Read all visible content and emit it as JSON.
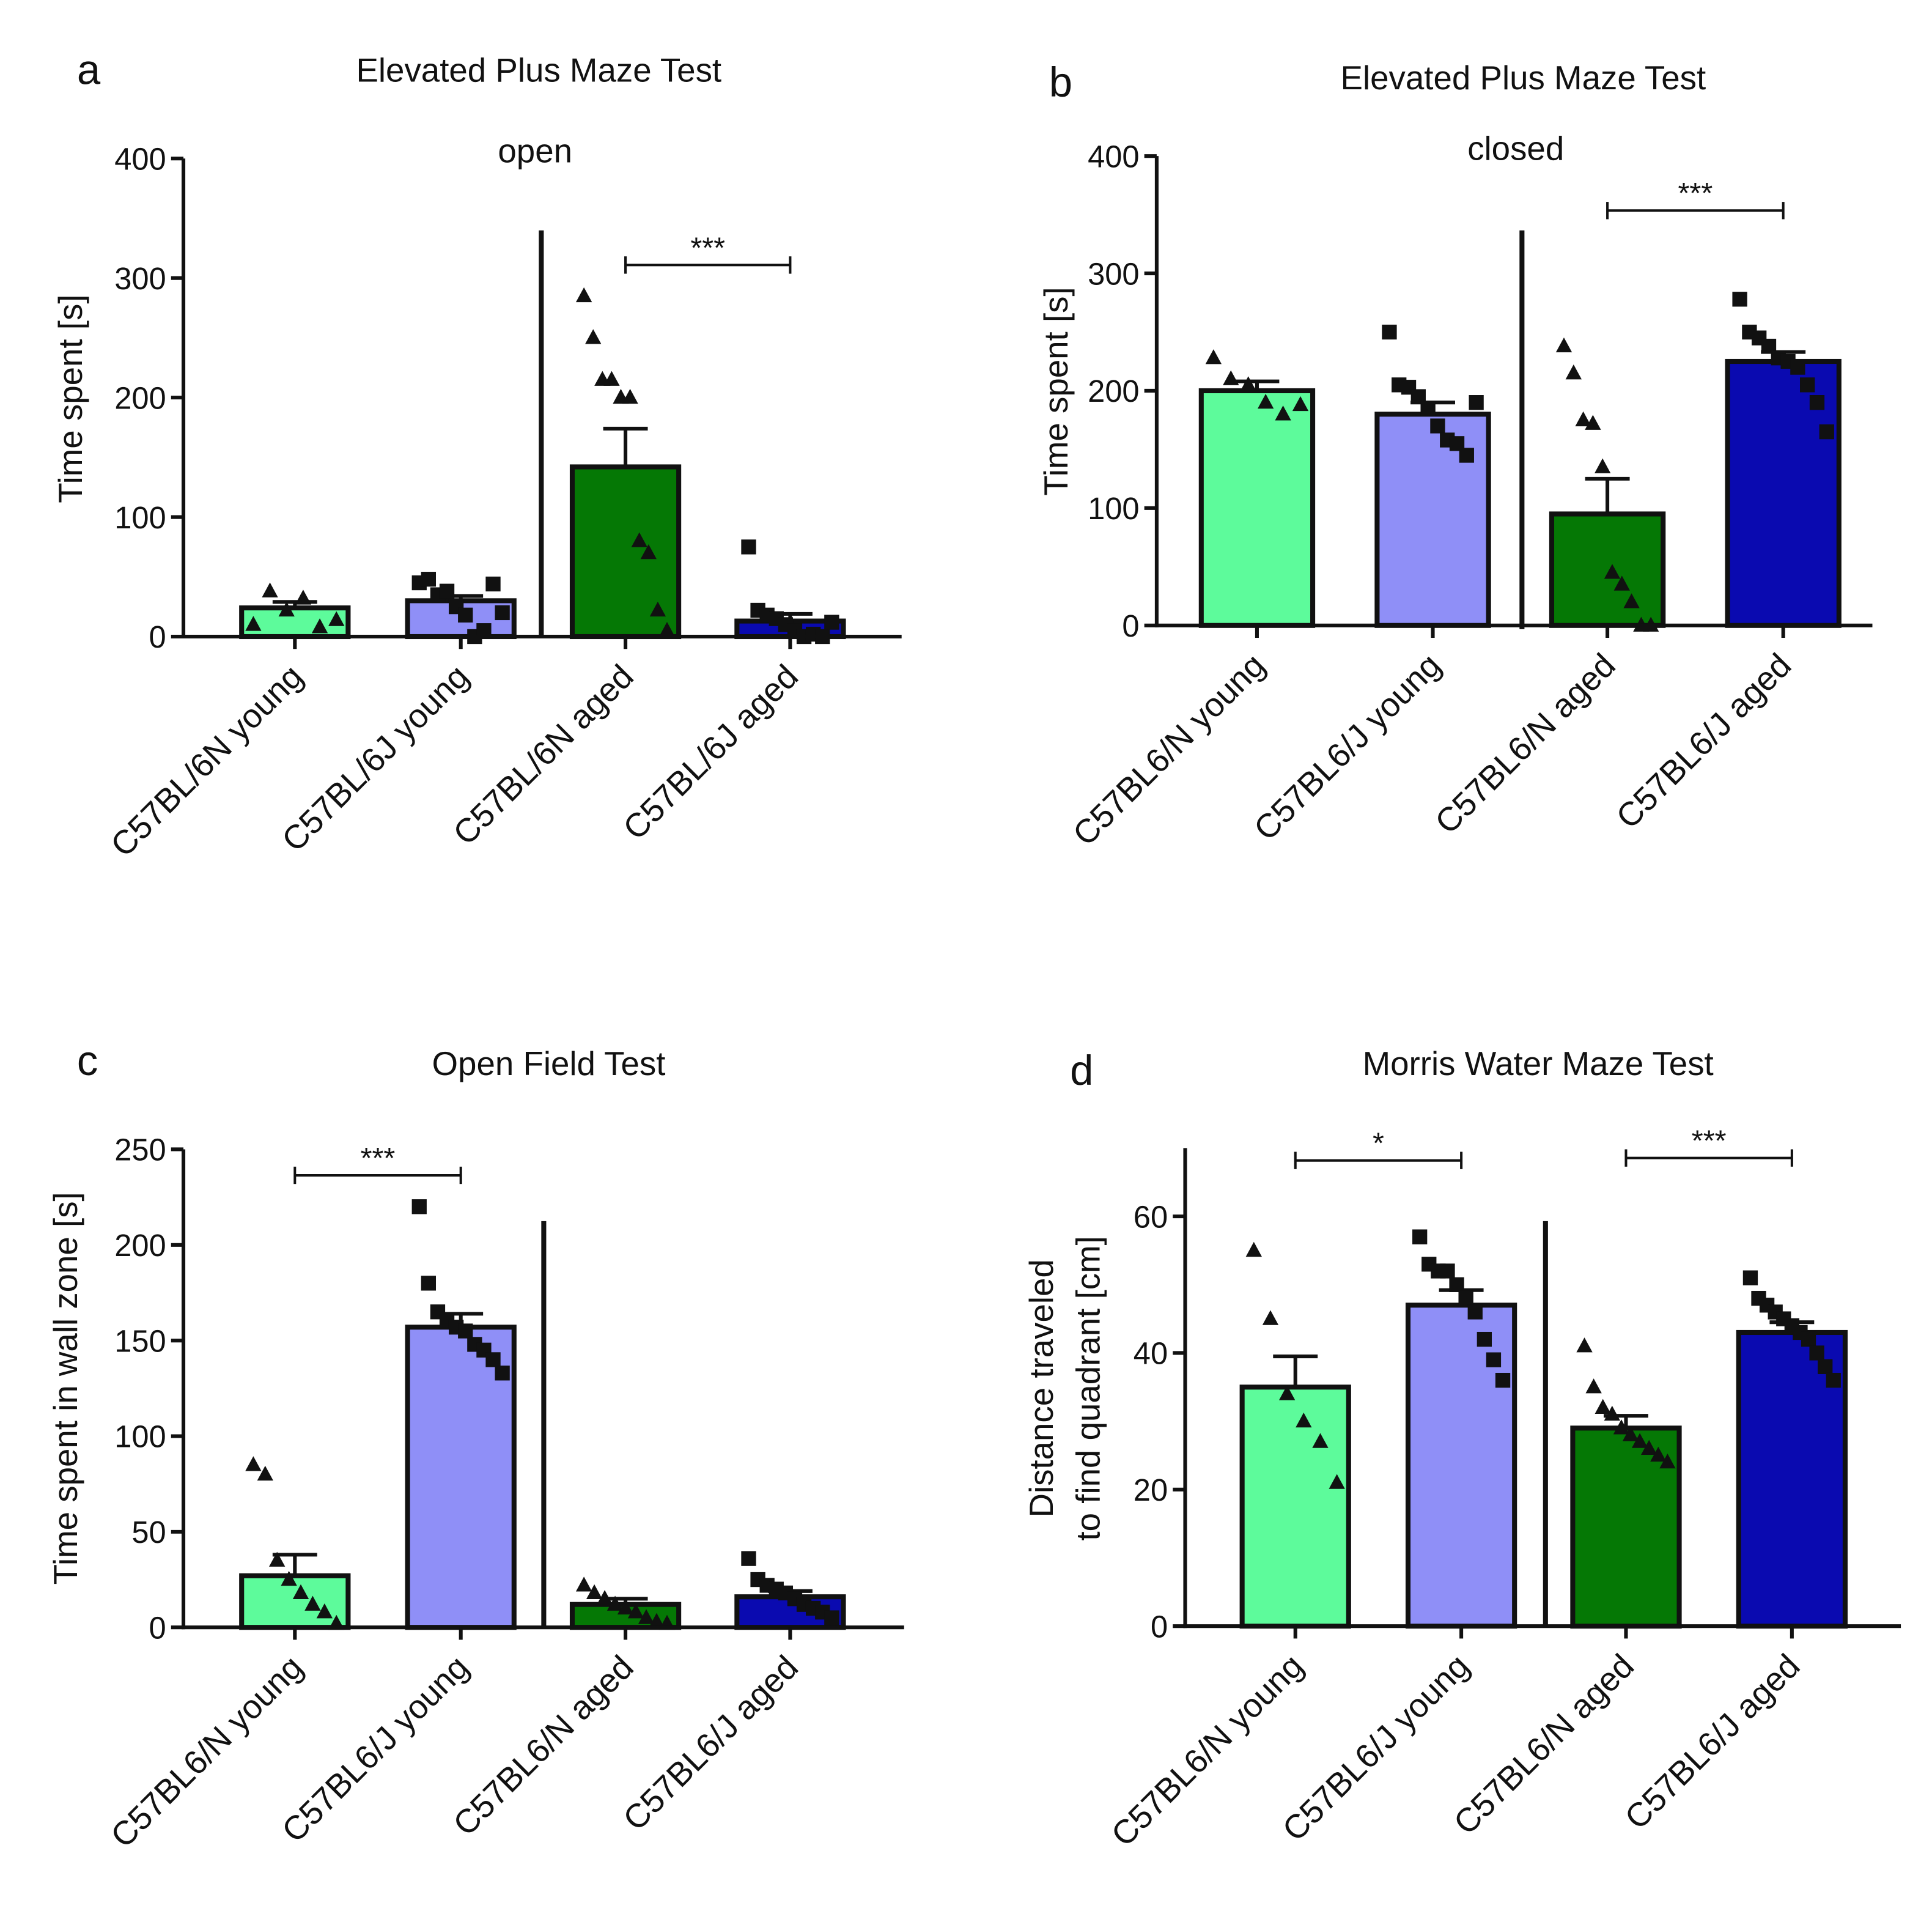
{
  "figure": {
    "colors": {
      "n_young": "#5dfb9b",
      "j_young": "#8f8ff7",
      "n_aged": "#057805",
      "j_aged": "#0a0ab0",
      "stroke": "#111111"
    }
  },
  "chart_data": [
    {
      "panel": "a",
      "type": "bar",
      "title": "Elevated Plus Maze Test",
      "subtitle": "open",
      "xlabel": "",
      "ylabel": "Time spent [s]",
      "ylim": [
        0,
        400
      ],
      "yticks": [
        "0",
        "100",
        "200",
        "300",
        "400"
      ],
      "categories": [
        "C57BL/6N young",
        "C57BL/6J young",
        "C57BL/6N aged",
        "C57BL/6J aged"
      ],
      "values": [
        24,
        30,
        142,
        13
      ],
      "sem": [
        5,
        4,
        32,
        6
      ],
      "markers": [
        "triangle",
        "square",
        "triangle",
        "square"
      ],
      "points": [
        [
          10,
          38,
          22,
          32,
          8,
          14
        ],
        [
          45,
          48,
          35,
          38,
          25,
          18,
          0,
          5,
          44,
          20
        ],
        [
          285,
          250,
          215,
          215,
          200,
          200,
          80,
          70,
          22,
          5
        ],
        [
          75,
          22,
          18,
          15,
          10,
          5,
          0,
          2,
          0,
          12
        ]
      ],
      "significance": [
        {
          "from": 2,
          "to": 3,
          "label": "***"
        }
      ],
      "divider_after": 1
    },
    {
      "panel": "b",
      "type": "bar",
      "title": "Elevated Plus Maze Test",
      "subtitle": "closed",
      "xlabel": "",
      "ylabel": "Time spent [s]",
      "ylim": [
        0,
        400
      ],
      "yticks": [
        "0",
        "100",
        "200",
        "300",
        "400"
      ],
      "categories": [
        "C57BL6/N young",
        "C57BL6/J young",
        "C57BL6/N aged",
        "C57BL6/J aged"
      ],
      "values": [
        200,
        180,
        95,
        225
      ],
      "sem": [
        8,
        10,
        30,
        8
      ],
      "markers": [
        "triangle",
        "square",
        "triangle",
        "square"
      ],
      "points": [
        [
          228,
          210,
          205,
          190,
          180,
          188
        ],
        [
          250,
          205,
          203,
          195,
          185,
          170,
          158,
          155,
          145,
          190
        ],
        [
          238,
          215,
          175,
          172,
          135,
          45,
          35,
          20,
          0,
          0
        ],
        [
          278,
          250,
          245,
          238,
          228,
          225,
          220,
          205,
          190,
          165
        ]
      ],
      "significance": [
        {
          "from": 2,
          "to": 3,
          "label": "***"
        }
      ],
      "divider_after": 1
    },
    {
      "panel": "c",
      "type": "bar",
      "title": "Open Field Test",
      "subtitle": "",
      "xlabel": "",
      "ylabel": "Time spent in wall zone [s]",
      "ylim": [
        0,
        250
      ],
      "yticks": [
        "0",
        "50",
        "100",
        "150",
        "200",
        "250"
      ],
      "categories": [
        "C57BL6/N young",
        "C57BL6/J young",
        "C57BL6/N aged",
        "C57BL6/J aged"
      ],
      "values": [
        27,
        157,
        12,
        16
      ],
      "sem": [
        11,
        7,
        3,
        3
      ],
      "markers": [
        "triangle",
        "square",
        "triangle",
        "square"
      ],
      "points": [
        [
          85,
          80,
          35,
          25,
          18,
          12,
          8,
          2
        ],
        [
          220,
          180,
          165,
          160,
          157,
          155,
          148,
          145,
          140,
          133
        ],
        [
          22,
          18,
          15,
          12,
          10,
          8,
          5,
          3,
          2
        ],
        [
          36,
          25,
          22,
          20,
          18,
          15,
          12,
          10,
          8,
          5
        ]
      ],
      "significance": [
        {
          "from": 0,
          "to": 1,
          "label": "***"
        }
      ],
      "divider_after": 1
    },
    {
      "panel": "d",
      "type": "bar",
      "title": "Morris Water Maze Test",
      "subtitle": "",
      "xlabel": "",
      "ylabel": "Distance traveled to find quadrant [cm]",
      "ylabel_lines": [
        "Distance traveled",
        "to find quadrant [cm]"
      ],
      "ylim": [
        0,
        70
      ],
      "yticks": [
        "0",
        "20",
        "40",
        "60"
      ],
      "categories": [
        "C57BL6/N young",
        "C57BL6/J young",
        "C57BL6/N aged",
        "C57BL6/J aged"
      ],
      "values": [
        35,
        47,
        29,
        43
      ],
      "sem": [
        4.5,
        2.2,
        1.8,
        1.5
      ],
      "markers": [
        "triangle",
        "square",
        "triangle",
        "square"
      ],
      "points": [
        [
          55,
          45,
          34,
          30,
          27,
          21
        ],
        [
          57,
          53,
          52,
          52,
          50,
          48,
          46,
          42,
          39,
          36
        ],
        [
          41,
          35,
          32,
          31,
          29,
          28,
          27,
          26,
          25,
          24
        ],
        [
          51,
          48,
          47,
          46,
          45,
          44,
          43,
          42,
          40,
          38,
          36
        ]
      ],
      "significance": [
        {
          "from": 0,
          "to": 1,
          "label": "*"
        },
        {
          "from": 2,
          "to": 3,
          "label": "***"
        }
      ],
      "divider_after": 1
    }
  ]
}
